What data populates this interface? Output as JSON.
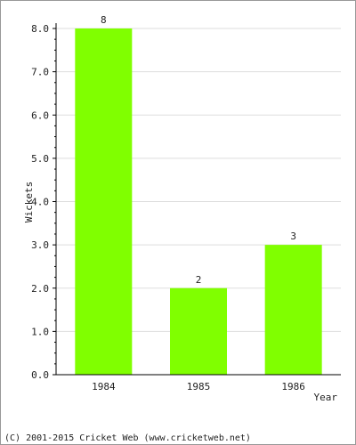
{
  "chart_data": {
    "type": "bar",
    "title": "",
    "xlabel": "Year",
    "ylabel": "Wickets",
    "categories": [
      "1984",
      "1985",
      "1986"
    ],
    "values": [
      8,
      2,
      3
    ],
    "data_labels": [
      "8",
      "2",
      "3"
    ],
    "yticks": [
      "0.0",
      "1.0",
      "2.0",
      "3.0",
      "4.0",
      "5.0",
      "6.0",
      "7.0",
      "8.0"
    ],
    "ylim": [
      0,
      8
    ],
    "grid": true,
    "bar_color": "#80ff00",
    "grid_color": "#dddddd"
  },
  "footer": {
    "copyright": "(C) 2001-2015 Cricket Web (www.cricketweb.net)"
  }
}
